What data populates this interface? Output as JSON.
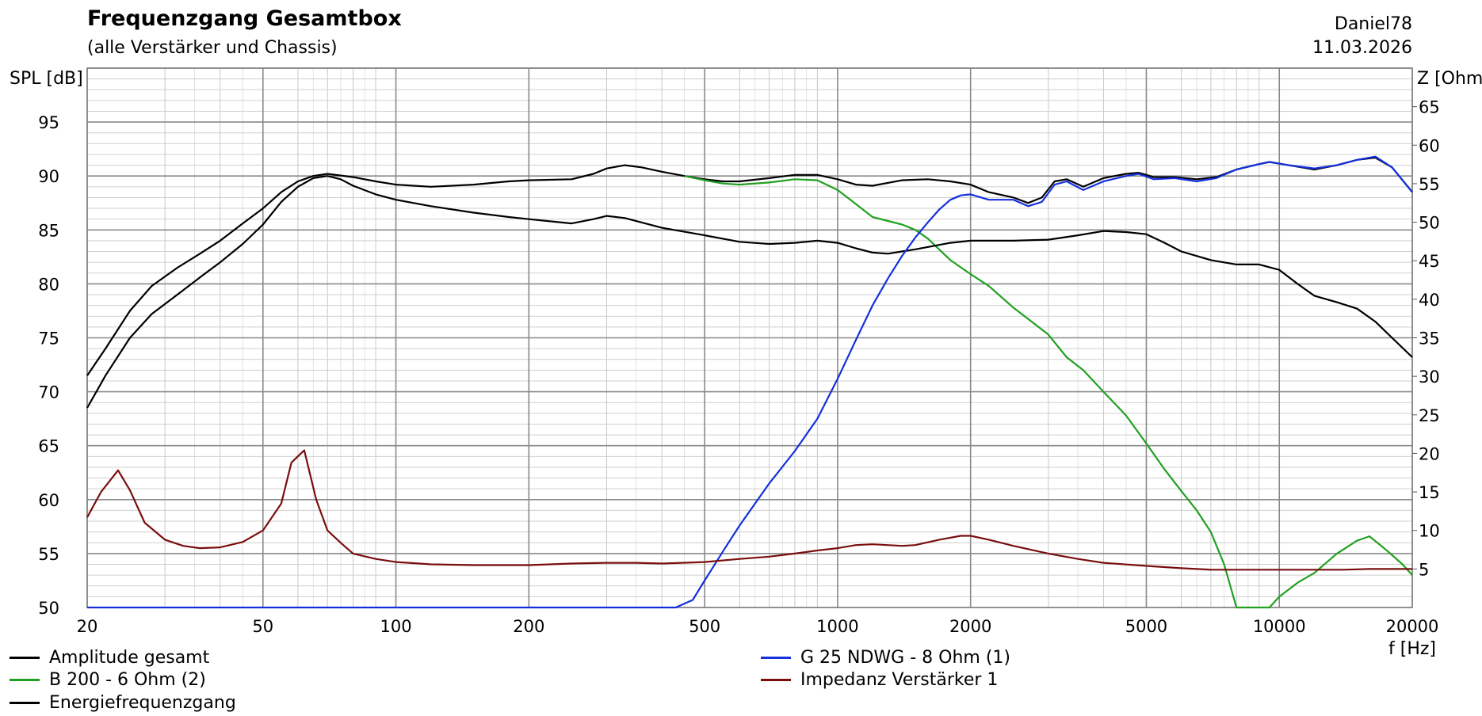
{
  "header": {
    "title": "Frequenzgang Gesamtbox",
    "subtitle": "(alle Verstärker und Chassis)",
    "author": "Daniel78",
    "date": "11.03.2026"
  },
  "chart_data": {
    "type": "line",
    "xscale": "log",
    "xlim": [
      20,
      20000
    ],
    "ylim": [
      50,
      100
    ],
    "y2lim": [
      0,
      70
    ],
    "ylabel": "SPL [dB]",
    "y2label": "Z [Ohm]",
    "xlabel": "f [Hz]",
    "grid": true,
    "legend_position": "bottom",
    "x_ticks": [
      20,
      50,
      100,
      200,
      500,
      1000,
      2000,
      5000,
      10000,
      20000
    ],
    "x_tick_labels": [
      "20",
      "50",
      "100",
      "200",
      "500",
      "1000",
      "2000",
      "5000",
      "10000",
      "20000"
    ],
    "y_ticks": [
      50,
      55,
      60,
      65,
      70,
      75,
      80,
      85,
      90,
      95
    ],
    "y_tick_labels": [
      "50",
      "55",
      "60",
      "65",
      "70",
      "75",
      "80",
      "85",
      "90",
      "95"
    ],
    "y2_ticks": [
      5,
      10,
      15,
      20,
      25,
      30,
      35,
      40,
      45,
      50,
      55,
      60,
      65
    ],
    "y2_tick_labels": [
      "5",
      "10",
      "15",
      "20",
      "25",
      "30",
      "35",
      "40",
      "45",
      "50",
      "55",
      "60",
      "65"
    ],
    "series": [
      {
        "name": "Amplitude gesamt",
        "color": "#000000",
        "axis": "left",
        "points": [
          [
            20,
            71.5
          ],
          [
            22,
            74
          ],
          [
            25,
            77.5
          ],
          [
            28,
            79.8
          ],
          [
            32,
            81.5
          ],
          [
            36,
            82.8
          ],
          [
            40,
            84
          ],
          [
            45,
            85.6
          ],
          [
            50,
            87
          ],
          [
            55,
            88.5
          ],
          [
            60,
            89.5
          ],
          [
            65,
            90
          ],
          [
            70,
            90.2
          ],
          [
            80,
            89.9
          ],
          [
            90,
            89.5
          ],
          [
            100,
            89.2
          ],
          [
            120,
            89
          ],
          [
            150,
            89.2
          ],
          [
            180,
            89.5
          ],
          [
            200,
            89.6
          ],
          [
            250,
            89.7
          ],
          [
            280,
            90.2
          ],
          [
            300,
            90.7
          ],
          [
            330,
            91
          ],
          [
            360,
            90.8
          ],
          [
            400,
            90.4
          ],
          [
            450,
            90
          ],
          [
            500,
            89.7
          ],
          [
            550,
            89.5
          ],
          [
            600,
            89.5
          ],
          [
            700,
            89.8
          ],
          [
            800,
            90.1
          ],
          [
            900,
            90.1
          ],
          [
            1000,
            89.7
          ],
          [
            1100,
            89.2
          ],
          [
            1200,
            89.1
          ],
          [
            1400,
            89.6
          ],
          [
            1600,
            89.7
          ],
          [
            1800,
            89.5
          ],
          [
            2000,
            89.2
          ],
          [
            2200,
            88.5
          ],
          [
            2500,
            88
          ],
          [
            2700,
            87.5
          ],
          [
            2900,
            88
          ],
          [
            3100,
            89.5
          ],
          [
            3300,
            89.7
          ],
          [
            3600,
            89
          ],
          [
            4000,
            89.8
          ],
          [
            4500,
            90.2
          ],
          [
            4800,
            90.3
          ],
          [
            5200,
            89.9
          ],
          [
            5800,
            89.9
          ],
          [
            6500,
            89.7
          ],
          [
            7200,
            89.9
          ],
          [
            8000,
            90.6
          ],
          [
            9000,
            91.1
          ],
          [
            9500,
            91.3
          ],
          [
            10500,
            91
          ],
          [
            12000,
            90.6
          ],
          [
            13500,
            91
          ],
          [
            15000,
            91.5
          ],
          [
            16500,
            91.7
          ],
          [
            18000,
            90.8
          ],
          [
            20000,
            88.5
          ]
        ]
      },
      {
        "name": "B 200 - 6 Ohm (2)",
        "color": "#22a022",
        "axis": "left",
        "points": [
          [
            450,
            90
          ],
          [
            500,
            89.6
          ],
          [
            550,
            89.3
          ],
          [
            600,
            89.2
          ],
          [
            700,
            89.4
          ],
          [
            800,
            89.7
          ],
          [
            900,
            89.6
          ],
          [
            1000,
            88.7
          ],
          [
            1100,
            87.4
          ],
          [
            1200,
            86.2
          ],
          [
            1400,
            85.5
          ],
          [
            1500,
            85
          ],
          [
            1600,
            84.2
          ],
          [
            1800,
            82.2
          ],
          [
            2000,
            80.9
          ],
          [
            2200,
            79.8
          ],
          [
            2500,
            77.8
          ],
          [
            3000,
            75.3
          ],
          [
            3300,
            73.2
          ],
          [
            3600,
            72
          ],
          [
            4000,
            70
          ],
          [
            4500,
            67.8
          ],
          [
            5000,
            65.2
          ],
          [
            5500,
            62.8
          ],
          [
            6000,
            60.8
          ],
          [
            6500,
            59
          ],
          [
            7000,
            57
          ],
          [
            7500,
            54
          ],
          [
            8000,
            50
          ],
          [
            9000,
            50
          ],
          [
            9500,
            50
          ],
          [
            10000,
            51
          ],
          [
            11000,
            52.3
          ],
          [
            12000,
            53.2
          ],
          [
            13500,
            55
          ],
          [
            15000,
            56.2
          ],
          [
            16000,
            56.6
          ],
          [
            17500,
            55.3
          ],
          [
            19000,
            54
          ],
          [
            20000,
            53
          ]
        ]
      },
      {
        "name": "Energiefrequenzgang",
        "color": "#000000",
        "axis": "left",
        "points": [
          [
            20,
            68.5
          ],
          [
            22,
            71.5
          ],
          [
            25,
            75
          ],
          [
            28,
            77.2
          ],
          [
            32,
            79
          ],
          [
            36,
            80.6
          ],
          [
            40,
            82
          ],
          [
            45,
            83.7
          ],
          [
            50,
            85.5
          ],
          [
            55,
            87.6
          ],
          [
            60,
            89
          ],
          [
            65,
            89.8
          ],
          [
            70,
            90
          ],
          [
            75,
            89.7
          ],
          [
            80,
            89.1
          ],
          [
            90,
            88.3
          ],
          [
            100,
            87.8
          ],
          [
            120,
            87.2
          ],
          [
            150,
            86.6
          ],
          [
            180,
            86.2
          ],
          [
            200,
            86
          ],
          [
            250,
            85.6
          ],
          [
            280,
            86
          ],
          [
            300,
            86.3
          ],
          [
            330,
            86.1
          ],
          [
            400,
            85.2
          ],
          [
            500,
            84.5
          ],
          [
            600,
            83.9
          ],
          [
            700,
            83.7
          ],
          [
            800,
            83.8
          ],
          [
            900,
            84
          ],
          [
            1000,
            83.8
          ],
          [
            1100,
            83.3
          ],
          [
            1200,
            82.9
          ],
          [
            1300,
            82.8
          ],
          [
            1500,
            83.2
          ],
          [
            1800,
            83.8
          ],
          [
            2000,
            84
          ],
          [
            2500,
            84
          ],
          [
            3000,
            84.1
          ],
          [
            3500,
            84.5
          ],
          [
            4000,
            84.9
          ],
          [
            4500,
            84.8
          ],
          [
            5000,
            84.6
          ],
          [
            5500,
            83.8
          ],
          [
            6000,
            83
          ],
          [
            7000,
            82.2
          ],
          [
            8000,
            81.8
          ],
          [
            9000,
            81.8
          ],
          [
            10000,
            81.3
          ],
          [
            11000,
            80
          ],
          [
            12000,
            78.9
          ],
          [
            13500,
            78.3
          ],
          [
            15000,
            77.7
          ],
          [
            16500,
            76.5
          ],
          [
            18000,
            75
          ],
          [
            20000,
            73.2
          ]
        ]
      },
      {
        "name": "G 25 NDWG - 8 Ohm (1)",
        "color": "#1430dd",
        "axis": "left",
        "points": [
          [
            20,
            50
          ],
          [
            200,
            50
          ],
          [
            430,
            50
          ],
          [
            470,
            50.7
          ],
          [
            500,
            52.5
          ],
          [
            550,
            55.2
          ],
          [
            600,
            57.6
          ],
          [
            700,
            61.5
          ],
          [
            800,
            64.5
          ],
          [
            900,
            67.5
          ],
          [
            1000,
            71.2
          ],
          [
            1100,
            74.8
          ],
          [
            1200,
            78
          ],
          [
            1300,
            80.5
          ],
          [
            1400,
            82.6
          ],
          [
            1500,
            84.3
          ],
          [
            1600,
            85.7
          ],
          [
            1700,
            86.9
          ],
          [
            1800,
            87.8
          ],
          [
            1900,
            88.2
          ],
          [
            2000,
            88.3
          ],
          [
            2200,
            87.8
          ],
          [
            2500,
            87.8
          ],
          [
            2700,
            87.2
          ],
          [
            2900,
            87.6
          ],
          [
            3100,
            89.2
          ],
          [
            3300,
            89.5
          ],
          [
            3600,
            88.7
          ],
          [
            4000,
            89.5
          ],
          [
            4500,
            90
          ],
          [
            4800,
            90.2
          ],
          [
            5200,
            89.7
          ],
          [
            5800,
            89.8
          ],
          [
            6500,
            89.5
          ],
          [
            7200,
            89.8
          ],
          [
            8000,
            90.6
          ],
          [
            9000,
            91.1
          ],
          [
            9500,
            91.3
          ],
          [
            10500,
            91
          ],
          [
            12000,
            90.7
          ],
          [
            13500,
            91
          ],
          [
            15000,
            91.5
          ],
          [
            16500,
            91.8
          ],
          [
            18000,
            90.8
          ],
          [
            20000,
            88.5
          ]
        ]
      },
      {
        "name": "Impedanz Verstärker 1",
        "color": "#7a0e0e",
        "axis": "right",
        "points": [
          [
            20,
            11.7
          ],
          [
            21.5,
            15
          ],
          [
            23.5,
            17.8
          ],
          [
            25,
            15.2
          ],
          [
            27,
            11
          ],
          [
            30,
            8.8
          ],
          [
            33,
            8
          ],
          [
            36,
            7.7
          ],
          [
            40,
            7.8
          ],
          [
            45,
            8.5
          ],
          [
            50,
            10
          ],
          [
            55,
            13.5
          ],
          [
            58,
            18.8
          ],
          [
            62,
            20.4
          ],
          [
            66,
            14
          ],
          [
            70,
            10
          ],
          [
            75,
            8.4
          ],
          [
            80,
            7
          ],
          [
            90,
            6.3
          ],
          [
            100,
            5.9
          ],
          [
            120,
            5.6
          ],
          [
            150,
            5.5
          ],
          [
            200,
            5.5
          ],
          [
            250,
            5.7
          ],
          [
            300,
            5.8
          ],
          [
            350,
            5.8
          ],
          [
            400,
            5.7
          ],
          [
            500,
            5.9
          ],
          [
            600,
            6.3
          ],
          [
            700,
            6.6
          ],
          [
            800,
            7
          ],
          [
            900,
            7.4
          ],
          [
            1000,
            7.7
          ],
          [
            1100,
            8.1
          ],
          [
            1200,
            8.2
          ],
          [
            1400,
            8
          ],
          [
            1500,
            8.1
          ],
          [
            1700,
            8.8
          ],
          [
            1900,
            9.3
          ],
          [
            2000,
            9.3
          ],
          [
            2200,
            8.8
          ],
          [
            2500,
            8
          ],
          [
            3000,
            7
          ],
          [
            3500,
            6.3
          ],
          [
            4000,
            5.8
          ],
          [
            5000,
            5.4
          ],
          [
            6000,
            5.1
          ],
          [
            7000,
            4.9
          ],
          [
            8000,
            4.9
          ],
          [
            10000,
            4.9
          ],
          [
            14000,
            4.9
          ],
          [
            16000,
            5
          ],
          [
            20000,
            5
          ]
        ]
      }
    ]
  }
}
